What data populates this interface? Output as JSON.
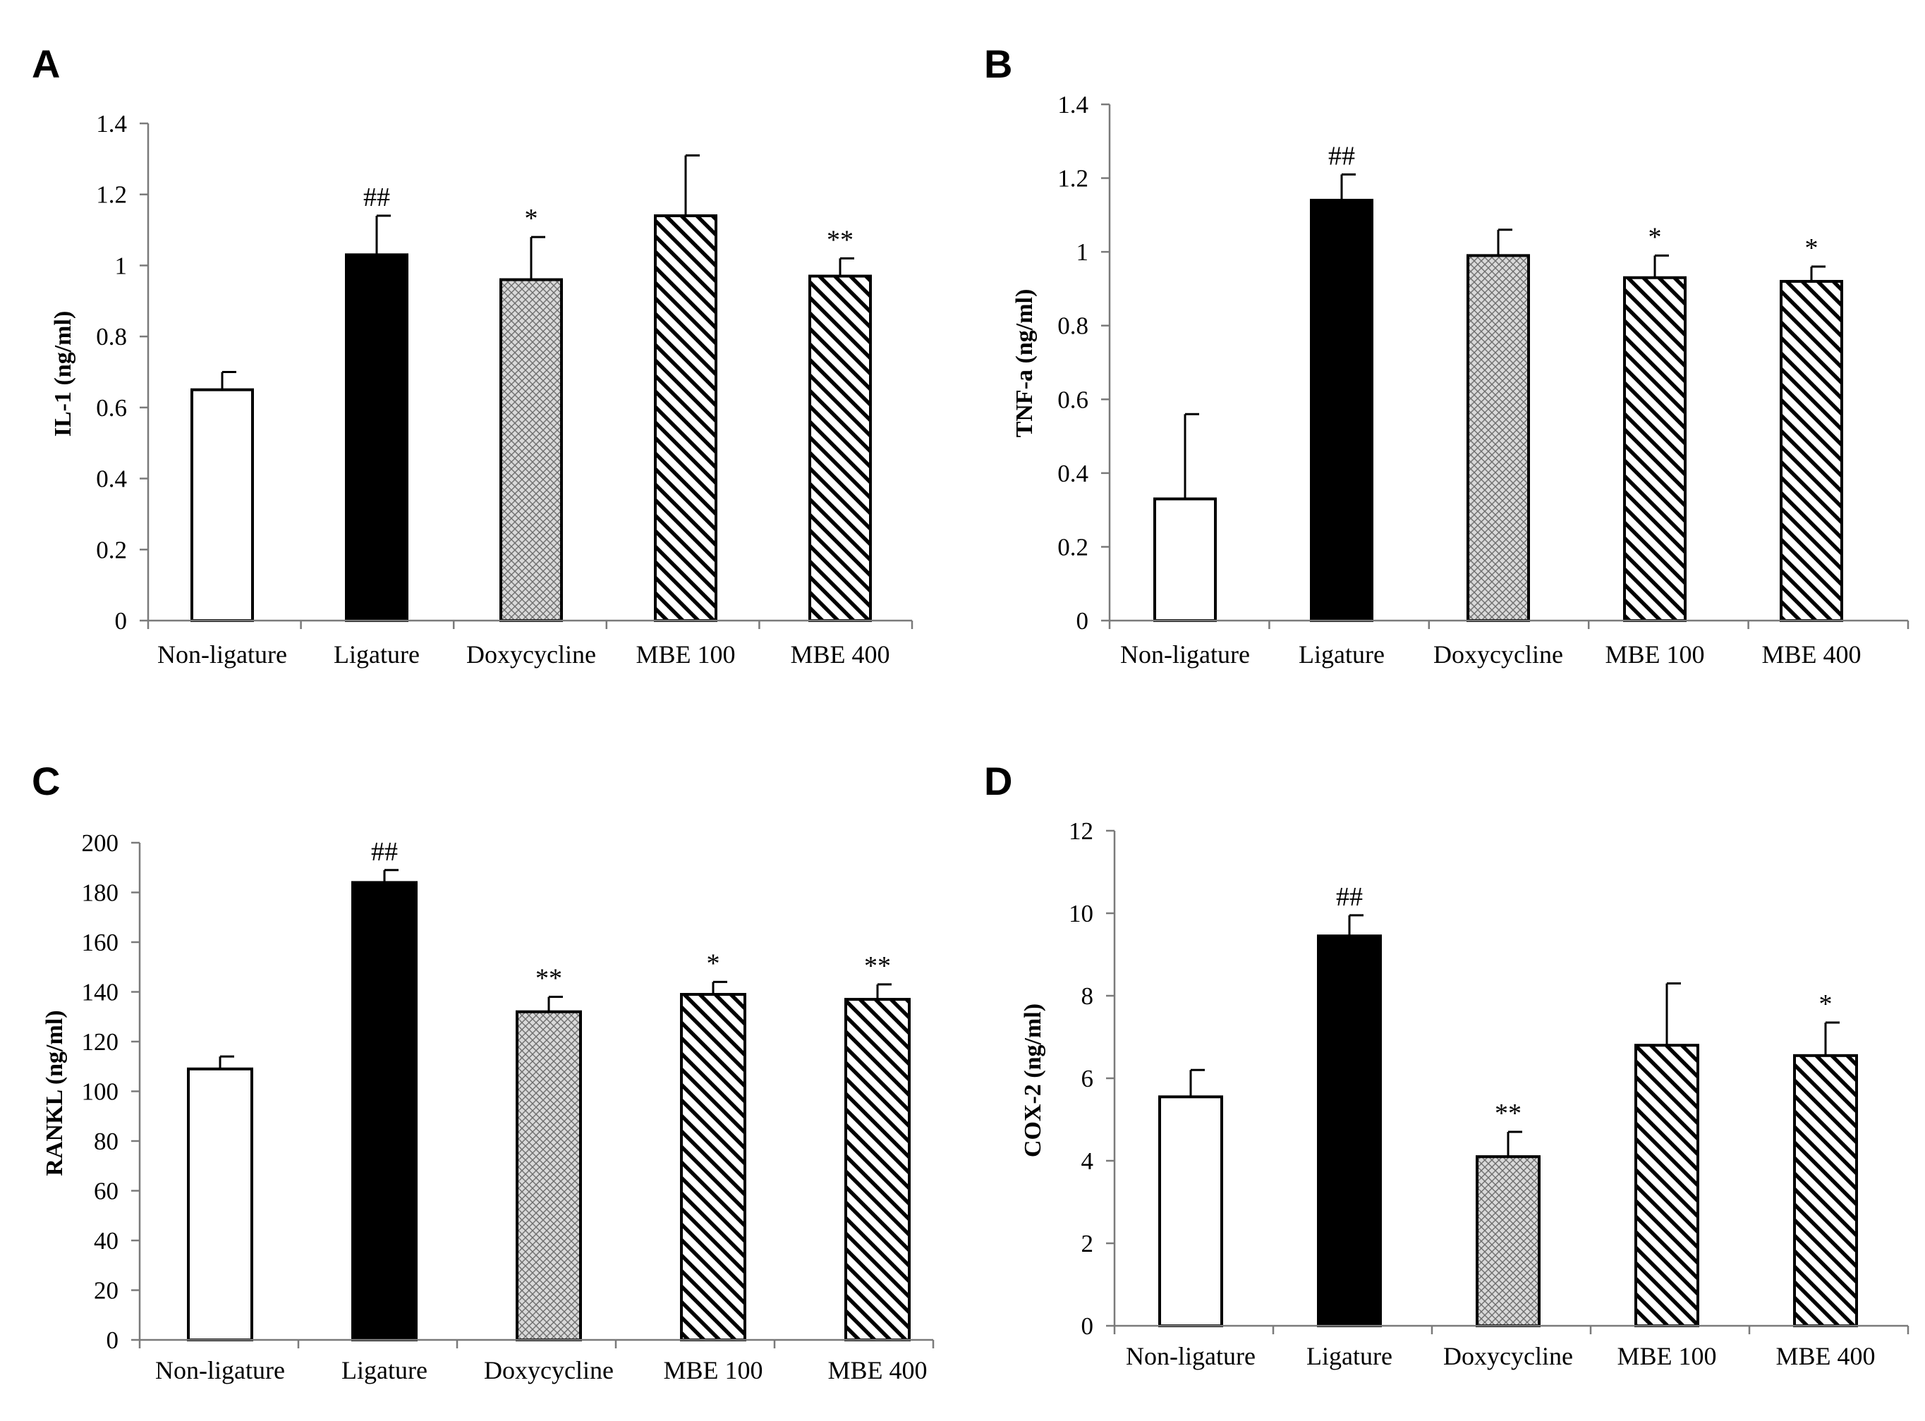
{
  "chart_data": [
    {
      "panel": "A",
      "type": "bar",
      "ylabel": "IL-1 (ng/ml)",
      "ylim": [
        0,
        1.4
      ],
      "yticks": [
        "0",
        "0.2",
        "0.4",
        "0.6",
        "0.8",
        "1",
        "1.2",
        "1.4"
      ],
      "categories": [
        "Non-ligature",
        "Ligature",
        "Doxycycline",
        "MBE 100",
        "MBE 400"
      ],
      "values": [
        0.65,
        1.03,
        0.96,
        1.14,
        0.97
      ],
      "errors": [
        0.05,
        0.11,
        0.12,
        0.17,
        0.05
      ],
      "significance": [
        "",
        "##",
        "*",
        "",
        "**"
      ],
      "fills": [
        "white",
        "black",
        "crosshatch",
        "diagonal",
        "diagonal"
      ]
    },
    {
      "panel": "B",
      "type": "bar",
      "ylabel": "TNF-a (ng/ml)",
      "ylim": [
        0,
        1.4
      ],
      "yticks": [
        "0",
        "0.2",
        "0.4",
        "0.6",
        "0.8",
        "1",
        "1.2",
        "1.4"
      ],
      "categories": [
        "Non-ligature",
        "Ligature",
        "Doxycycline",
        "MBE 100",
        "MBE 400"
      ],
      "values": [
        0.33,
        1.14,
        0.99,
        0.93,
        0.92
      ],
      "errors": [
        0.23,
        0.07,
        0.07,
        0.06,
        0.04
      ],
      "significance": [
        "",
        "##",
        "",
        "*",
        "*"
      ],
      "fills": [
        "white",
        "black",
        "crosshatch",
        "diagonal",
        "diagonal"
      ]
    },
    {
      "panel": "C",
      "type": "bar",
      "ylabel": "RANKL (ng/ml)",
      "ylim": [
        0,
        200
      ],
      "yticks": [
        "0",
        "20",
        "40",
        "60",
        "80",
        "100",
        "120",
        "140",
        "160",
        "180",
        "200"
      ],
      "categories": [
        "Non-ligature",
        "Ligature",
        "Doxycycline",
        "MBE 100",
        "MBE 400"
      ],
      "values": [
        109,
        184,
        132,
        139,
        137
      ],
      "errors": [
        5,
        5,
        6,
        5,
        6
      ],
      "significance": [
        "",
        "##",
        "**",
        "*",
        "**"
      ],
      "fills": [
        "white",
        "black",
        "crosshatch",
        "diagonal",
        "diagonal"
      ]
    },
    {
      "panel": "D",
      "type": "bar",
      "ylabel": "COX-2 (ng/ml)",
      "ylim": [
        0,
        12
      ],
      "yticks": [
        "0",
        "2",
        "4",
        "6",
        "8",
        "10",
        "12"
      ],
      "categories": [
        "Non-ligature",
        "Ligature",
        "Doxycycline",
        "MBE 100",
        "MBE 400"
      ],
      "values": [
        5.55,
        9.45,
        4.1,
        6.8,
        6.55
      ],
      "errors": [
        0.65,
        0.5,
        0.6,
        1.5,
        0.8
      ],
      "significance": [
        "",
        "##",
        "**",
        "",
        "*"
      ],
      "fills": [
        "white",
        "black",
        "crosshatch",
        "diagonal",
        "diagonal"
      ]
    }
  ]
}
